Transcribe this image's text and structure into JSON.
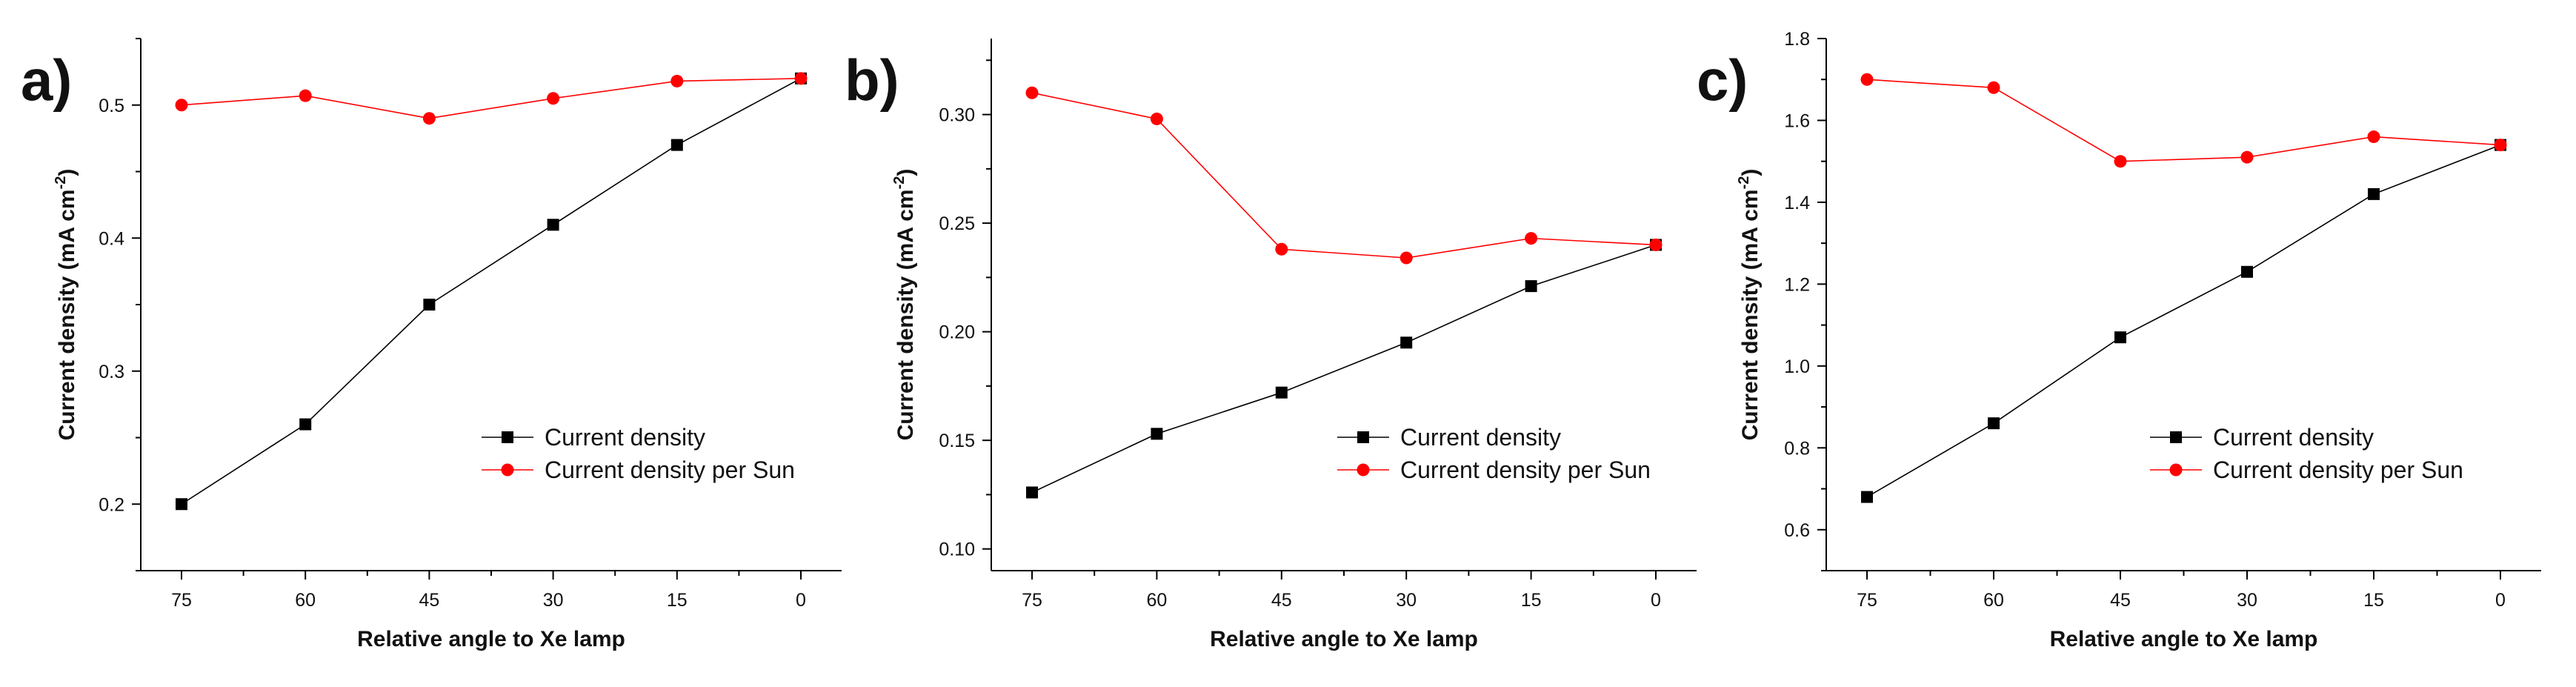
{
  "chart_data": [
    {
      "panel": "a)",
      "type": "line",
      "x": [
        75,
        60,
        45,
        30,
        15,
        0
      ],
      "x_tick_labels": [
        "75",
        "60",
        "45",
        "30",
        "15",
        "0"
      ],
      "xlabel": "Relative angle to Xe lamp",
      "ylabel": "Current density (mA cm",
      "ylabel_sup": "-2",
      "ylabel_close": ")",
      "ylim": [
        0.15,
        0.55
      ],
      "yticks": [
        0.2,
        0.3,
        0.4,
        0.5
      ],
      "ytick_labels": [
        "0.2",
        "0.3",
        "0.4",
        "0.5"
      ],
      "series": [
        {
          "name": "Current density",
          "marker": "square",
          "color": "#000000",
          "values": [
            0.2,
            0.26,
            0.35,
            0.41,
            0.47,
            0.52
          ]
        },
        {
          "name": "Current density per Sun",
          "marker": "circle",
          "color": "#ff0000",
          "values": [
            0.5,
            0.507,
            0.49,
            0.505,
            0.518,
            0.52
          ]
        }
      ],
      "legend_location": "lower-right"
    },
    {
      "panel": "b)",
      "type": "line",
      "x": [
        75,
        60,
        45,
        30,
        15,
        0
      ],
      "x_tick_labels": [
        "75",
        "60",
        "45",
        "30",
        "15",
        "0"
      ],
      "xlabel": "Relative angle to Xe lamp",
      "ylabel": "Current density (mA cm",
      "ylabel_sup": "-2",
      "ylabel_close": ")",
      "ylim": [
        0.09,
        0.335
      ],
      "yticks": [
        0.1,
        0.15,
        0.2,
        0.25,
        0.3
      ],
      "ytick_labels": [
        "0.10",
        "0.15",
        "0.20",
        "0.25",
        "0.30"
      ],
      "series": [
        {
          "name": "Current density",
          "marker": "square",
          "color": "#000000",
          "values": [
            0.126,
            0.153,
            0.172,
            0.195,
            0.221,
            0.24
          ]
        },
        {
          "name": "Current density per Sun",
          "marker": "circle",
          "color": "#ff0000",
          "values": [
            0.31,
            0.298,
            0.238,
            0.234,
            0.243,
            0.24
          ]
        }
      ],
      "legend_location": "lower-right"
    },
    {
      "panel": "c)",
      "type": "line",
      "x": [
        75,
        60,
        45,
        30,
        15,
        0
      ],
      "x_tick_labels": [
        "75",
        "60",
        "45",
        "30",
        "15",
        "0"
      ],
      "xlabel": "Relative angle to Xe lamp",
      "ylabel": "Current density (mA cm",
      "ylabel_sup": "-2",
      "ylabel_close": ")",
      "ylim": [
        0.5,
        1.8
      ],
      "yticks": [
        0.6,
        0.8,
        1.0,
        1.2,
        1.4,
        1.6,
        1.8
      ],
      "ytick_labels": [
        "0.6",
        "0.8",
        "1.0",
        "1.2",
        "1.4",
        "1.6",
        "1.8"
      ],
      "series": [
        {
          "name": "Current density",
          "marker": "square",
          "color": "#000000",
          "values": [
            0.68,
            0.86,
            1.07,
            1.23,
            1.42,
            1.54
          ]
        },
        {
          "name": "Current density per Sun",
          "marker": "circle",
          "color": "#ff0000",
          "values": [
            1.7,
            1.68,
            1.5,
            1.51,
            1.56,
            1.54
          ]
        }
      ],
      "legend_location": "lower-right"
    }
  ]
}
